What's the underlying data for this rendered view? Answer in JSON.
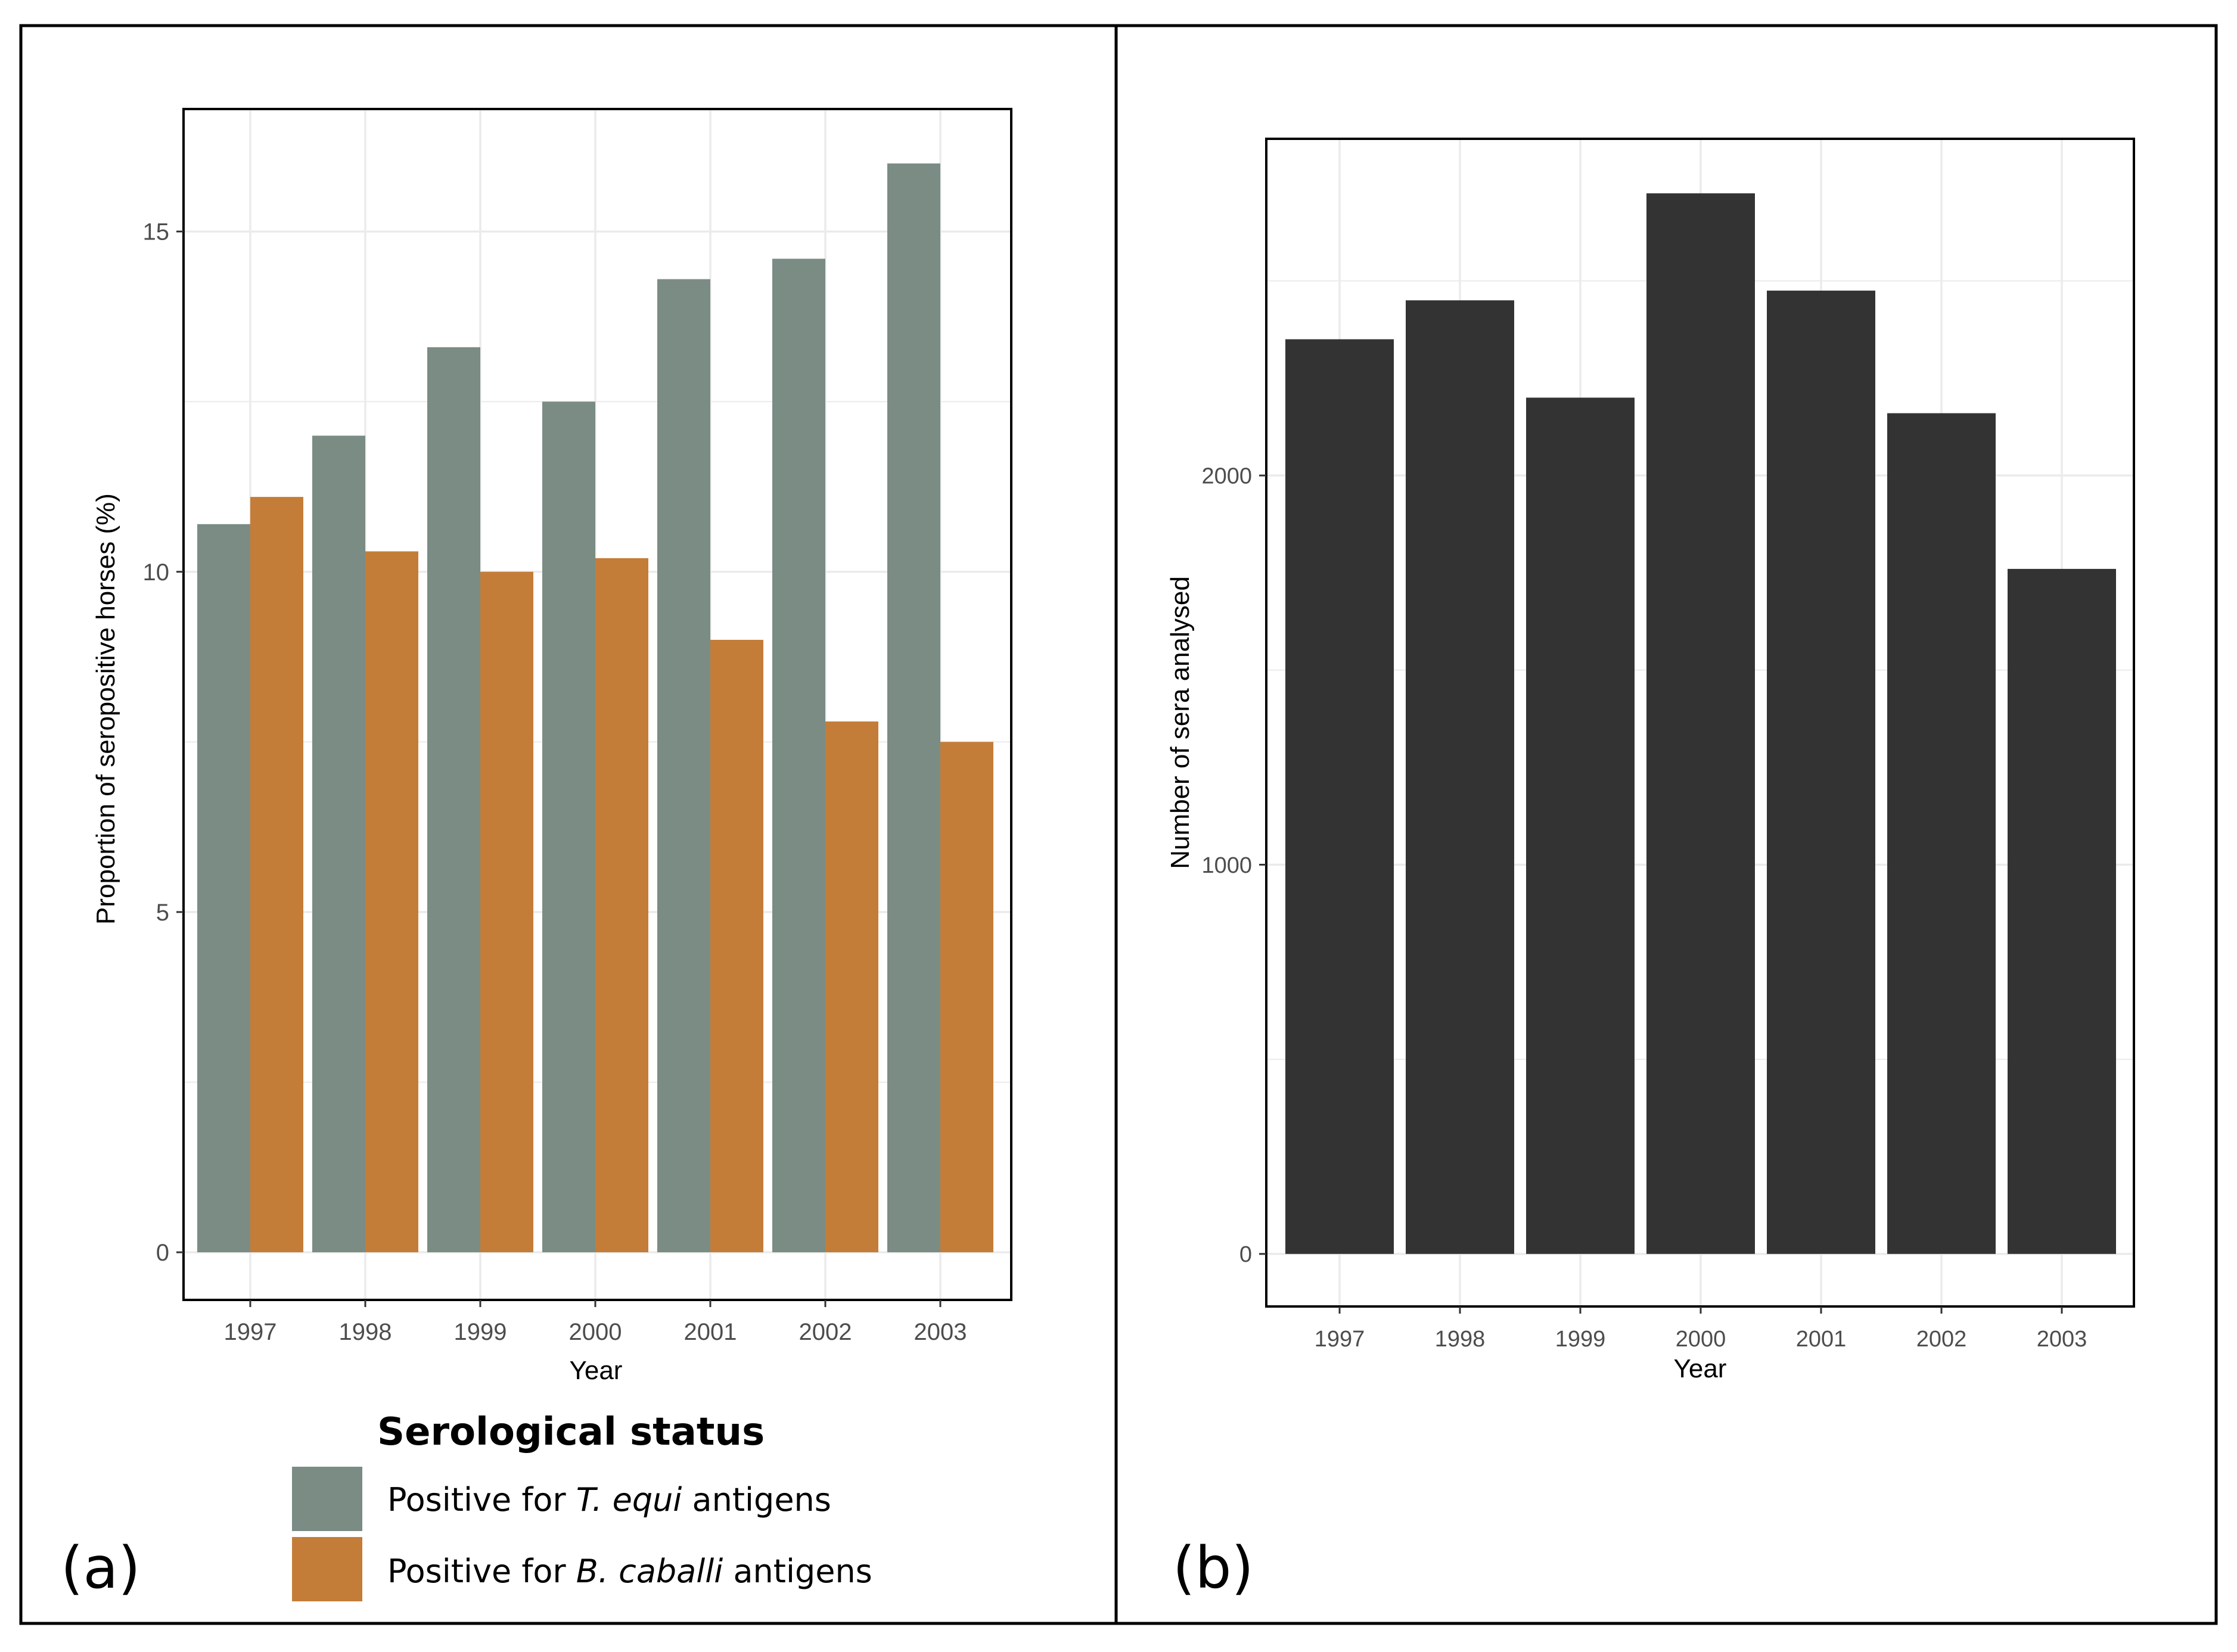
{
  "colors": {
    "t_equi": "#7a8c84",
    "b_caballi": "#c47d38",
    "sera": "#333333",
    "grid": "#ebebeb",
    "frame": "#000000",
    "axis_text": "#4d4d4d"
  },
  "chart_data": [
    {
      "panel_label": "(a)",
      "type": "bar",
      "title": "",
      "xlabel": "Year",
      "ylabel": "Proportion of seropositive horses (%)",
      "categories": [
        "1997",
        "1998",
        "1999",
        "2000",
        "2001",
        "2002",
        "2003"
      ],
      "series": [
        {
          "name": "Positive for T. equi antigens",
          "values": [
            10.7,
            12.0,
            13.3,
            12.5,
            14.3,
            14.6,
            16.0
          ]
        },
        {
          "name": "Positive for B. caballi antigens",
          "values": [
            11.1,
            10.3,
            10.0,
            10.2,
            9.0,
            7.8,
            7.5
          ]
        }
      ],
      "ylim": [
        -0.7,
        16.8
      ],
      "yticks": [
        0,
        5,
        10,
        15
      ],
      "ytick_labels": [
        "0",
        "5",
        "10",
        "15"
      ],
      "grid": true,
      "legend": {
        "title": "Serological status",
        "position": "bottom",
        "entries": [
          {
            "prefix": "Positive for ",
            "species": "T. equi",
            "suffix": " antigens"
          },
          {
            "prefix": "Positive for ",
            "species": "B. caballi",
            "suffix": " antigens"
          }
        ]
      }
    },
    {
      "panel_label": "(b)",
      "type": "bar",
      "title": "",
      "xlabel": "Year",
      "ylabel": "Number of sera analysed",
      "categories": [
        "1997",
        "1998",
        "1999",
        "2000",
        "2001",
        "2002",
        "2003"
      ],
      "series": [
        {
          "name": "Number of sera analysed",
          "values": [
            2350,
            2450,
            2200,
            2725,
            2475,
            2160,
            1760
          ]
        }
      ],
      "ylim": [
        -135,
        2865
      ],
      "yticks": [
        0,
        1000,
        2000
      ],
      "ytick_labels": [
        "0",
        "1000",
        "2000"
      ],
      "grid": true
    }
  ]
}
